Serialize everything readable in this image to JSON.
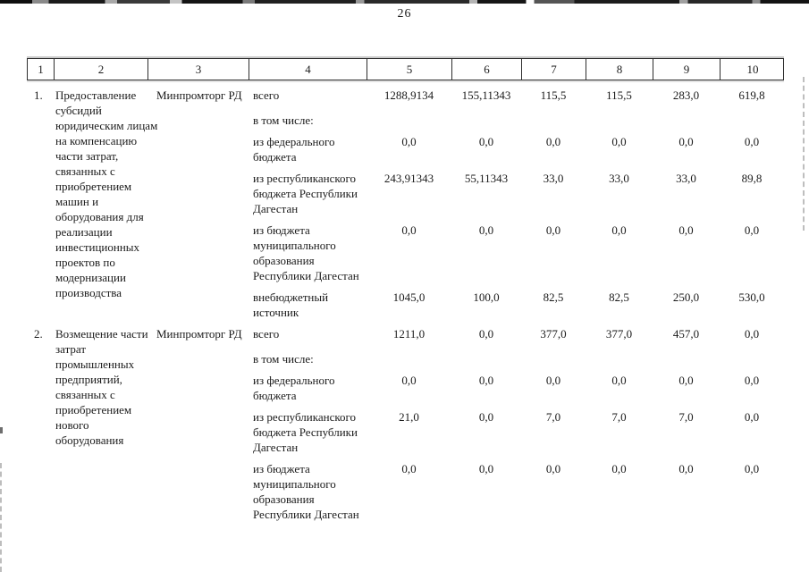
{
  "page": {
    "number": "26"
  },
  "table": {
    "columns": [
      "1",
      "2",
      "3",
      "4",
      "5",
      "6",
      "7",
      "8",
      "9",
      "10"
    ],
    "items": [
      {
        "num": "1.",
        "name": "Предоставление субсидий юридическим лицам на компенсацию части затрат, связанных с приобретением машин и оборудования для реализации инвестиционных проектов по модернизации производства",
        "executor": "Минпромторг РД",
        "rows": [
          {
            "label": "всего",
            "values": [
              "1288,9134",
              "155,11343",
              "115,5",
              "115,5",
              "283,0",
              "619,8"
            ]
          },
          {
            "label": "в том числе:",
            "values": [
              "",
              "",
              "",
              "",
              "",
              ""
            ]
          },
          {
            "label": "из федерального бюджета",
            "values": [
              "0,0",
              "0,0",
              "0,0",
              "0,0",
              "0,0",
              "0,0"
            ]
          },
          {
            "label": "из республиканского бюджета Республики Дагестан",
            "values": [
              "243,91343",
              "55,11343",
              "33,0",
              "33,0",
              "33,0",
              "89,8"
            ]
          },
          {
            "label": "из бюджета муниципального образования Республики Дагестан",
            "values": [
              "0,0",
              "0,0",
              "0,0",
              "0,0",
              "0,0",
              "0,0"
            ]
          },
          {
            "label": "внебюджетный источник",
            "values": [
              "1045,0",
              "100,0",
              "82,5",
              "82,5",
              "250,0",
              "530,0"
            ]
          }
        ]
      },
      {
        "num": "2.",
        "name": "Возмещение части затрат промышленных предприятий, связанных с приобретением нового оборудования",
        "executor": "Минпромторг РД",
        "rows": [
          {
            "label": "всего",
            "values": [
              "1211,0",
              "0,0",
              "377,0",
              "377,0",
              "457,0",
              "0,0"
            ]
          },
          {
            "label": "в том числе:",
            "values": [
              "",
              "",
              "",
              "",
              "",
              ""
            ]
          },
          {
            "label": "из федерального бюджета",
            "values": [
              "0,0",
              "0,0",
              "0,0",
              "0,0",
              "0,0",
              "0,0"
            ]
          },
          {
            "label": "из республиканского бюджета Республики Дагестан",
            "values": [
              "21,0",
              "0,0",
              "7,0",
              "7,0",
              "7,0",
              "0,0"
            ]
          },
          {
            "label": "из бюджета муниципального образования Республики Дагестан",
            "values": [
              "0,0",
              "0,0",
              "0,0",
              "0,0",
              "0,0",
              "0,0"
            ]
          }
        ]
      }
    ]
  }
}
